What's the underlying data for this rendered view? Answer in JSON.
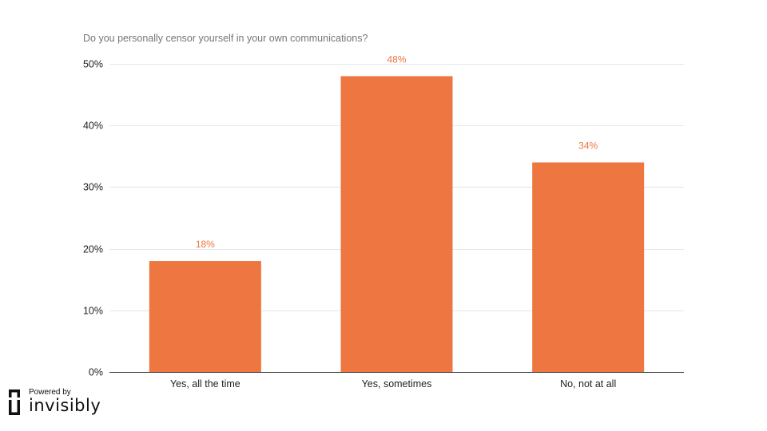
{
  "chart_data": {
    "type": "bar",
    "title": "Do you personally censor yourself in your own communications?",
    "categories": [
      "Yes, all the time",
      "Yes, sometimes",
      "No, not at all"
    ],
    "values": [
      18,
      48,
      34
    ],
    "value_labels": [
      "18%",
      "48%",
      "34%"
    ],
    "ylim": [
      0,
      50
    ],
    "yticks": [
      0,
      10,
      20,
      30,
      40,
      50
    ],
    "ytick_labels": [
      "0%",
      "10%",
      "20%",
      "30%",
      "40%",
      "50%"
    ],
    "grid": true,
    "legend": "none",
    "bar_color": "#ED7641"
  },
  "branding": {
    "powered_by": "Powered by",
    "name": "invisibly",
    "logo_icon": "invisibly-logo-icon"
  }
}
